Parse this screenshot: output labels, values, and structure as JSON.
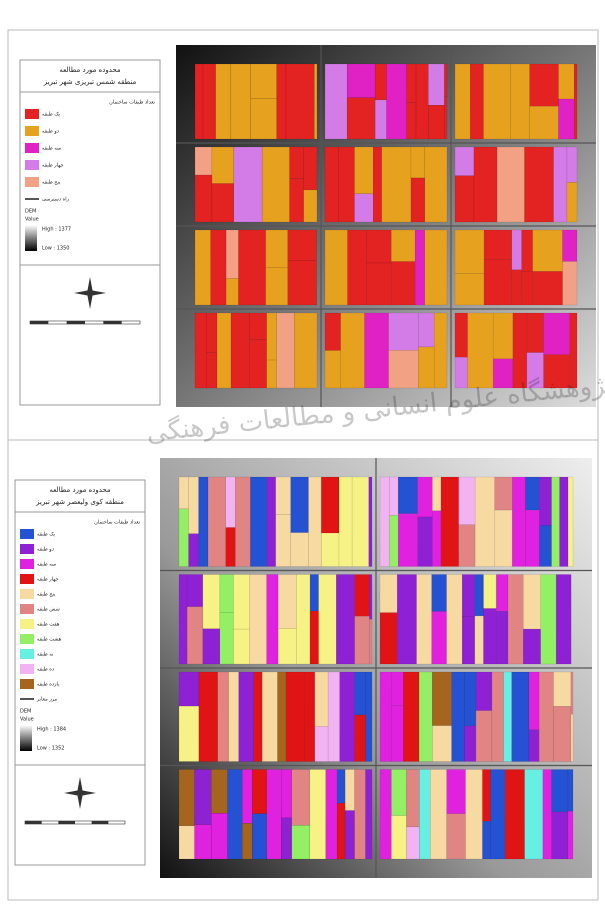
{
  "watermark": "پژوهشگاه علوم انسانی و مطالعات فرهنگی",
  "panels": [
    {
      "title": "محدوده مورد مطالعه",
      "subtitle": "منطقه شمس تبریزی شهر تبریز",
      "legend_title": "تعداد طبقات ساختمان",
      "items": [
        {
          "label": "یک طبقه",
          "color": "#e32222"
        },
        {
          "label": "دو طبقه",
          "color": "#e6a11f"
        },
        {
          "label": "سه طبقه",
          "color": "#e021c4"
        },
        {
          "label": "چهار طبقه",
          "color": "#d37be6"
        },
        {
          "label": "پنج طبقه",
          "color": "#f2a184"
        }
      ],
      "road": "راه دسترسی",
      "dem": "DEM",
      "value": "Value",
      "high": "High : 1377",
      "low": "Low : 1350"
    },
    {
      "title": "محدوده مورد مطالعه",
      "subtitle": "منطقه کوی ولیعصر شهر تبریز",
      "legend_title": "تعداد طبقات ساختمان",
      "items": [
        {
          "label": "یک طبقه",
          "color": "#2452d2"
        },
        {
          "label": "دو طبقه",
          "color": "#8e21d4"
        },
        {
          "label": "سه طبقه",
          "color": "#e021e0"
        },
        {
          "label": "چهار طبقه",
          "color": "#e01414"
        },
        {
          "label": "پنج طبقه",
          "color": "#f7d9a2"
        },
        {
          "label": "شش طبقه",
          "color": "#e08484"
        },
        {
          "label": "هفت طبقه",
          "color": "#f7f286"
        },
        {
          "label": "هشت طبقه",
          "color": "#93f064"
        },
        {
          "label": "نه طبقه",
          "color": "#66efe2"
        },
        {
          "label": "ده طبقه",
          "color": "#f2b3f2"
        },
        {
          "label": "یازده طبقه",
          "color": "#a5651f"
        }
      ],
      "road": "مرز معابر",
      "dem": "DEM",
      "value": "Value",
      "high": "High : 1384",
      "low": "Low : 1352"
    }
  ]
}
